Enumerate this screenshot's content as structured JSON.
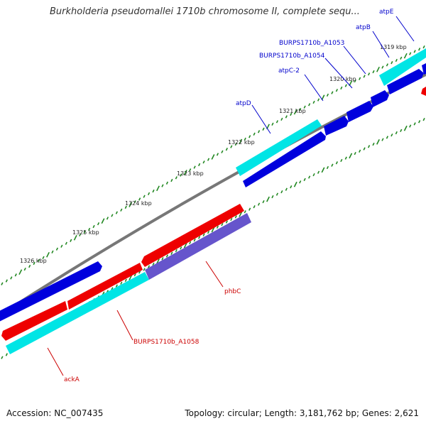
{
  "title": "Burkholderia pseudomallei 1710b chromosome II, complete sequ...",
  "accession": "Accession: NC_007435",
  "summary": "Topology: circular; Length: 3,181,762 bp; Genes: 2,621",
  "ruler": {
    "labels": [
      "1319 kbp",
      "1320 kbp",
      "1321 kbp",
      "1322 kbp",
      "1323 kbp",
      "1324 kbp",
      "1325 kbp",
      "1326 kbp"
    ]
  },
  "colors": {
    "forward_gene": "#0000dd",
    "forward_cds": "#00e5e5",
    "reverse_gene": "#ee0000",
    "reverse_cds_alt": "#6655cc",
    "backbone": "#777777",
    "tick": "#228822",
    "forward_label": "#0000cc",
    "reverse_label": "#cc0000"
  },
  "genes_forward": [
    "atpE",
    "atpB",
    "BURPS1710b_A1053",
    "BURPS1710b_A1054",
    "atpC-2",
    "atpD"
  ],
  "genes_reverse": [
    "phbC",
    "BURPS1710b_A1058",
    "ackA"
  ]
}
